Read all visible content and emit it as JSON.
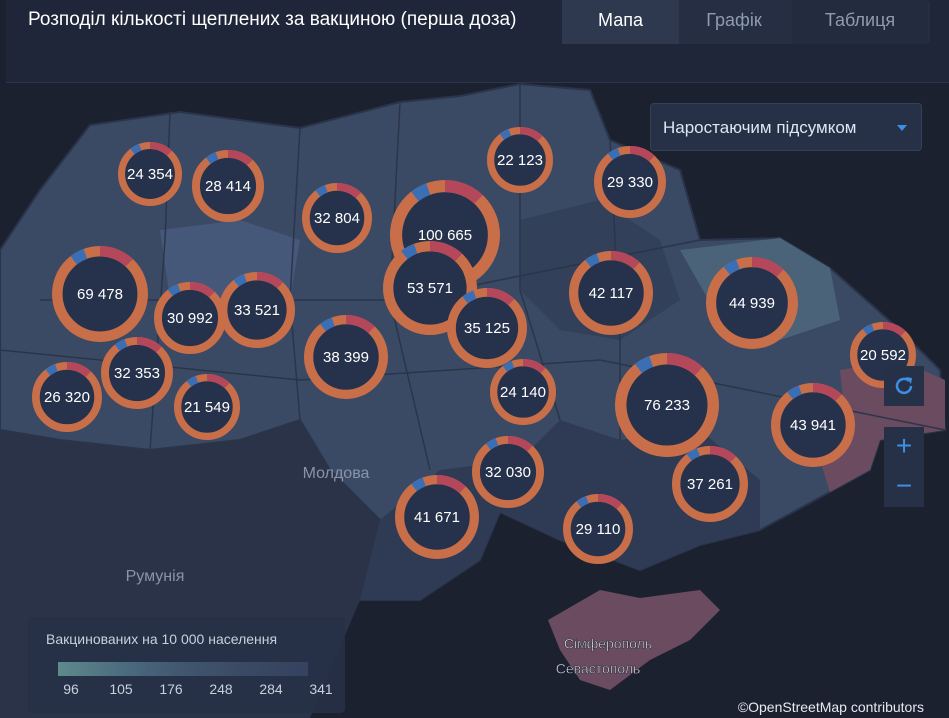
{
  "header": {
    "title": "Розподіл кількості щеплених за вакциною (перша доза)",
    "tabs": [
      "Мапа",
      "Графік",
      "Таблиця"
    ]
  },
  "dropdown": "Наростаючим підсумком",
  "map": {
    "place_labels": [
      "Молдова",
      "Румунія",
      "Сімферополь",
      "Севастополь"
    ],
    "markers": [
      {
        "label": "24 354"
      },
      {
        "label": "28 414"
      },
      {
        "label": "32 804"
      },
      {
        "label": "100 665"
      },
      {
        "label": "22 123"
      },
      {
        "label": "29 330"
      },
      {
        "label": "69 478"
      },
      {
        "label": "30 992"
      },
      {
        "label": "33 521"
      },
      {
        "label": "53 571"
      },
      {
        "label": "35 125"
      },
      {
        "label": "42 117"
      },
      {
        "label": "44 939"
      },
      {
        "label": "20 592"
      },
      {
        "label": "38 399"
      },
      {
        "label": "26 320"
      },
      {
        "label": "32 353"
      },
      {
        "label": "21 549"
      },
      {
        "label": "24 140"
      },
      {
        "label": "76 233"
      },
      {
        "label": "43 941"
      },
      {
        "label": "32 030"
      },
      {
        "label": "37 261"
      },
      {
        "label": "41 671"
      },
      {
        "label": "29 110"
      }
    ]
  },
  "legend": {
    "title": "Вакцинованих на 10 000 населення",
    "ticks": [
      "96",
      "105",
      "176",
      "248",
      "284",
      "341"
    ]
  },
  "attribution": "©OpenStreetMap contributors"
}
